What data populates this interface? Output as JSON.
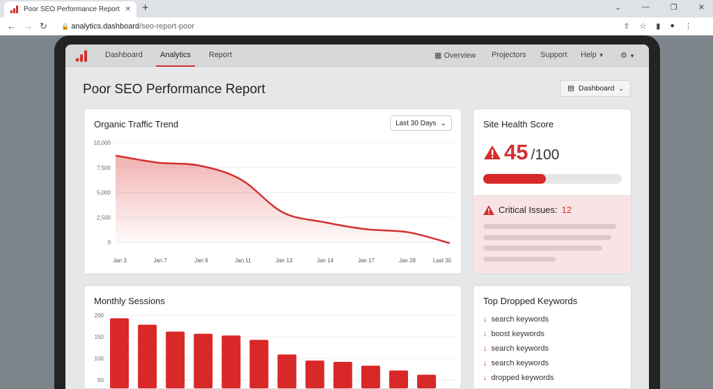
{
  "browser": {
    "tab_title": "Poor SEO Performance Report",
    "url_host": "analytics.dashboard",
    "url_path": "/seo-report-poor"
  },
  "nav": {
    "items": [
      "Dashboard",
      "Analytics",
      "Report"
    ],
    "active": "Analytics",
    "right": [
      "Overview",
      "Projectors",
      "Support",
      "Help"
    ]
  },
  "page": {
    "title": "Poor SEO Performance Report",
    "view_button": "Dashboard"
  },
  "traffic": {
    "title": "Organic Traffic Trend",
    "range": "Last 30 Days"
  },
  "health": {
    "title": "Site Health Score",
    "score": "45",
    "total": "/100",
    "score_fraction": 0.45,
    "critical_label": "Critical Issues:",
    "critical_count": "12"
  },
  "sessions": {
    "title": "Monthly Sessions"
  },
  "keywords": {
    "title": "Top Dropped Keywords",
    "items": [
      "search keywords",
      "boost keywords",
      "search keywords",
      "search keywords",
      "dropped keywords"
    ]
  },
  "colors": {
    "accent": "#d32f2f"
  },
  "chart_data": [
    {
      "type": "area",
      "title": "Organic Traffic Trend",
      "categories": [
        "Jan 3",
        "Jan 7",
        "Jan 9",
        "Jan 11",
        "Jan 13",
        "Jan 14",
        "Jan 17",
        "Jan 28",
        "Last 30"
      ],
      "values": [
        8700,
        8000,
        7700,
        6300,
        3000,
        2000,
        1300,
        1000,
        -100
      ],
      "ylim": [
        0,
        10000
      ],
      "yticks": [
        "10,000",
        "7,500",
        "5,000",
        "2,500",
        "0"
      ],
      "grid": true
    },
    {
      "type": "bar",
      "title": "Monthly Sessions",
      "values": [
        193,
        178,
        162,
        157,
        153,
        143,
        109,
        95,
        92,
        83,
        72,
        62
      ],
      "ylim": [
        0,
        200
      ],
      "yticks": [
        "200",
        "150",
        "100",
        "50"
      ],
      "grid": true
    }
  ]
}
